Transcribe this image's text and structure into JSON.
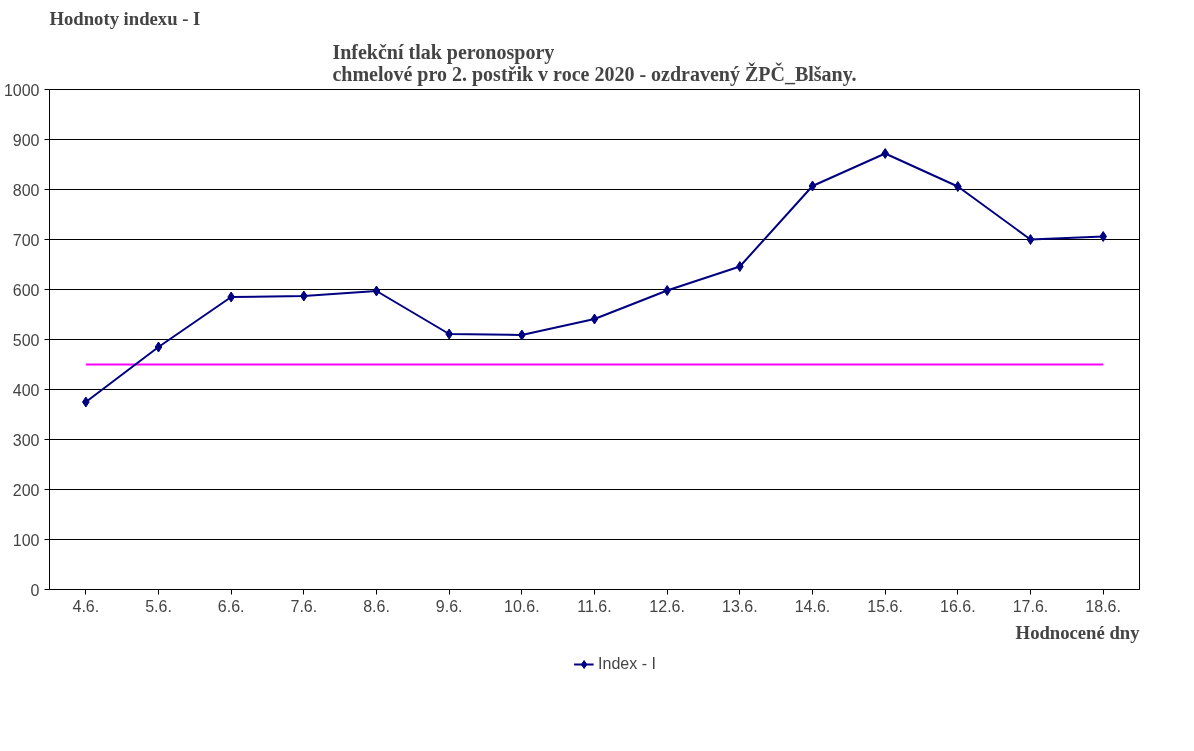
{
  "chart_data": {
    "type": "line",
    "title": "Infekční tlak peronospory\nchmelové pro 2. postřik v roce 2020 - ozdravený ŽPČ_Blšany.",
    "ylabel": "Hodnoty indexu - I",
    "xlabel": "Hodnocené dny",
    "categories": [
      "4.6.",
      "5.6.",
      "6.6.",
      "7.6.",
      "8.6.",
      "9.6.",
      "10.6.",
      "11.6.",
      "12.6.",
      "13.6.",
      "14.6.",
      "15.6.",
      "16.6.",
      "17.6.",
      "18.6."
    ],
    "series": [
      {
        "name": "Index - I",
        "color": "#000080",
        "values": [
          375,
          485,
          585,
          587,
          597,
          511,
          509,
          541,
          598,
          646,
          807,
          872,
          806,
          700,
          706
        ]
      }
    ],
    "ref_lines": [
      {
        "axis": "y",
        "value": 450,
        "color": "#ff00ff"
      }
    ],
    "ylim": [
      0,
      1000
    ],
    "yticks": [
      0,
      100,
      200,
      300,
      400,
      500,
      600,
      700,
      800,
      900,
      1000
    ],
    "grid": "y",
    "legend": "bottom",
    "marker": "diamond",
    "line_style": "solid"
  }
}
